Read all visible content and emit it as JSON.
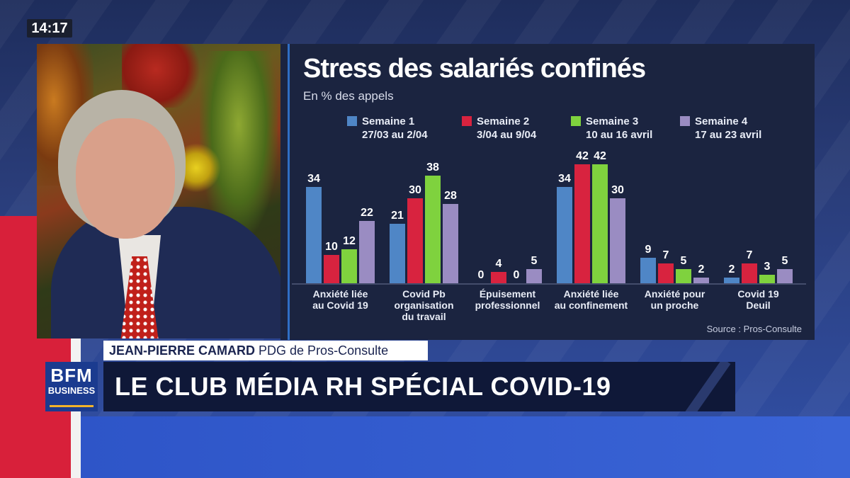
{
  "clock": "14:17",
  "chart_data": {
    "type": "bar",
    "title": "Stress des salariés confinés",
    "subtitle": "En % des appels",
    "categories": [
      [
        "Anxiété liée",
        "au Covid 19"
      ],
      [
        "Covid Pb",
        "organisation",
        "du travail"
      ],
      [
        "Épuisement",
        "professionnel"
      ],
      [
        "Anxiété liée",
        "au confinement"
      ],
      [
        "Anxiété pour",
        "un proche"
      ],
      [
        "Covid 19",
        "Deuil"
      ]
    ],
    "series": [
      {
        "name": "Semaine 1",
        "period": "27/03 au 2/04",
        "color": "#4f86c6",
        "values": [
          34,
          21,
          0,
          34,
          9,
          2
        ]
      },
      {
        "name": "Semaine 2",
        "period": "3/04 au 9/04",
        "color": "#d8233f",
        "values": [
          10,
          30,
          4,
          42,
          7,
          7
        ]
      },
      {
        "name": "Semaine 3",
        "period": "10 au 16 avril",
        "color": "#7fd23e",
        "values": [
          12,
          38,
          0,
          42,
          5,
          3
        ]
      },
      {
        "name": "Semaine 4",
        "period": "17 au 23 avril",
        "color": "#9a8cc2",
        "values": [
          22,
          28,
          5,
          30,
          2,
          5
        ]
      }
    ],
    "ylim": [
      0,
      45
    ],
    "source": "Source : Pros-Consulte"
  },
  "lower_third": {
    "name": "JEAN-PIERRE CAMARD",
    "role": "PDG de Pros-Consulte",
    "headline": "LE CLUB MÉDIA RH SPÉCIAL COVID-19"
  },
  "logo": {
    "line1": "BFM",
    "line2": "BUSINESS"
  }
}
